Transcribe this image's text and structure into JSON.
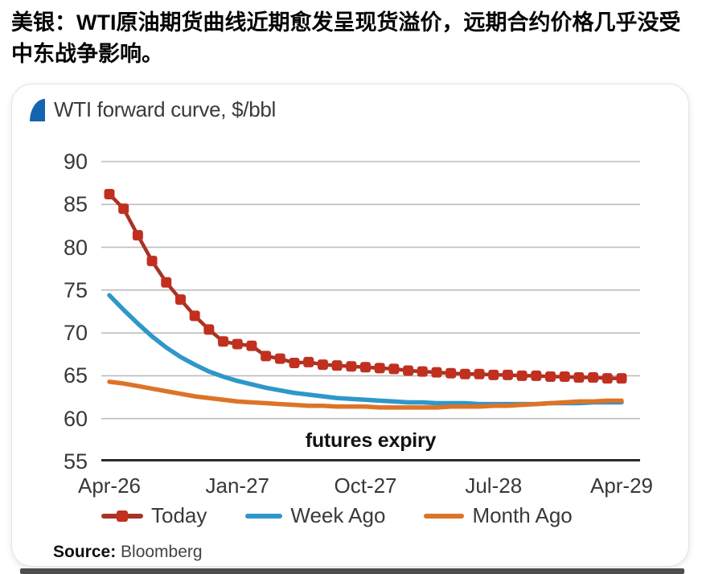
{
  "post": {
    "text": "美银：WTI原油期货曲线近期愈发呈现货溢价，远期合约价格几乎没受中东战争影响。"
  },
  "card": {
    "source_label": "Source:",
    "source_value": "Bloomberg"
  },
  "chart_data": {
    "type": "line",
    "title": "WTI forward curve, $/bbl",
    "xlabel": "futures expiry",
    "ylabel": "",
    "x_range": [
      "Apr-26",
      "Apr-29"
    ],
    "x_interval": "monthly",
    "x_tick_labels": [
      "Apr-26",
      "Jan-27",
      "Oct-27",
      "Jul-28",
      "Apr-29"
    ],
    "x_tick_indices": [
      0,
      9,
      18,
      27,
      36
    ],
    "y_ticks": [
      90,
      85,
      80,
      75,
      70,
      65,
      60,
      55
    ],
    "ylim": [
      55,
      90
    ],
    "grid": "horizontal",
    "legend_position": "bottom",
    "colors": {
      "grid": "#bdbdbd",
      "axis": "#2a2a2a",
      "flag": "#1464b0",
      "text": "#3a3a3a"
    },
    "series": [
      {
        "name": "Today",
        "style": "line-with-square-markers",
        "color": "#c1301f",
        "line_color": "#a93226",
        "values": [
          86.2,
          84.5,
          81.4,
          78.4,
          75.9,
          73.9,
          72.0,
          70.4,
          69.0,
          68.7,
          68.5,
          67.3,
          67.0,
          66.5,
          66.6,
          66.3,
          66.2,
          66.1,
          66.0,
          65.9,
          65.8,
          65.6,
          65.5,
          65.4,
          65.3,
          65.2,
          65.2,
          65.1,
          65.1,
          65.0,
          65.0,
          64.9,
          64.9,
          64.8,
          64.8,
          64.7,
          64.7
        ]
      },
      {
        "name": "Week Ago",
        "style": "line",
        "color": "#2f97c9",
        "line_color": "#2f97c9",
        "values": [
          74.4,
          72.7,
          71.1,
          69.6,
          68.3,
          67.2,
          66.3,
          65.5,
          64.9,
          64.4,
          64.0,
          63.6,
          63.3,
          63.0,
          62.8,
          62.6,
          62.4,
          62.3,
          62.2,
          62.1,
          62.0,
          61.9,
          61.9,
          61.8,
          61.8,
          61.8,
          61.7,
          61.7,
          61.7,
          61.7,
          61.7,
          61.8,
          61.8,
          61.8,
          61.9,
          61.9,
          61.9
        ]
      },
      {
        "name": "Month Ago",
        "style": "line",
        "color": "#dd7327",
        "line_color": "#dd7327",
        "values": [
          64.3,
          64.1,
          63.8,
          63.5,
          63.2,
          62.9,
          62.6,
          62.4,
          62.2,
          62.0,
          61.9,
          61.8,
          61.7,
          61.6,
          61.5,
          61.5,
          61.4,
          61.4,
          61.4,
          61.3,
          61.3,
          61.3,
          61.3,
          61.3,
          61.4,
          61.4,
          61.4,
          61.5,
          61.5,
          61.6,
          61.7,
          61.8,
          61.9,
          62.0,
          62.0,
          62.1,
          62.1
        ]
      }
    ]
  }
}
